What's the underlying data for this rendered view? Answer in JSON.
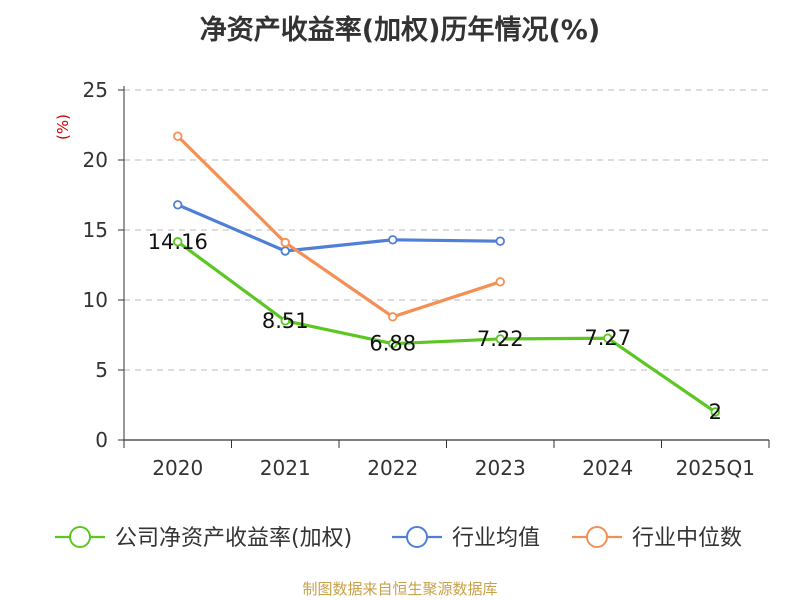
{
  "chart_data": {
    "type": "line",
    "title": "净资产收益率(加权)历年情况(%)",
    "ylabel": "(%)",
    "xlabel": "",
    "categories": [
      "2020",
      "2021",
      "2022",
      "2023",
      "2024",
      "2025Q1"
    ],
    "ylim": [
      0,
      25
    ],
    "yticks": [
      0,
      5,
      10,
      15,
      20,
      25
    ],
    "grid": "horizontal-dashed",
    "legend_position": "bottom",
    "series": [
      {
        "name": "公司净资产收益率(加权)",
        "color": "#5cc623",
        "values": [
          14.16,
          8.51,
          6.88,
          7.22,
          7.27,
          2
        ],
        "data_labels": [
          "14.16",
          "8.51",
          "6.88",
          "7.22",
          "7.27",
          "2"
        ]
      },
      {
        "name": "行业均值",
        "color": "#4f7fd6",
        "values": [
          16.8,
          13.5,
          14.3,
          14.2,
          null,
          null
        ]
      },
      {
        "name": "行业中位数",
        "color": "#f49055",
        "values": [
          21.7,
          14.1,
          8.8,
          11.3,
          null,
          null
        ]
      }
    ]
  },
  "source_note": "制图数据来自恒生聚源数据库"
}
